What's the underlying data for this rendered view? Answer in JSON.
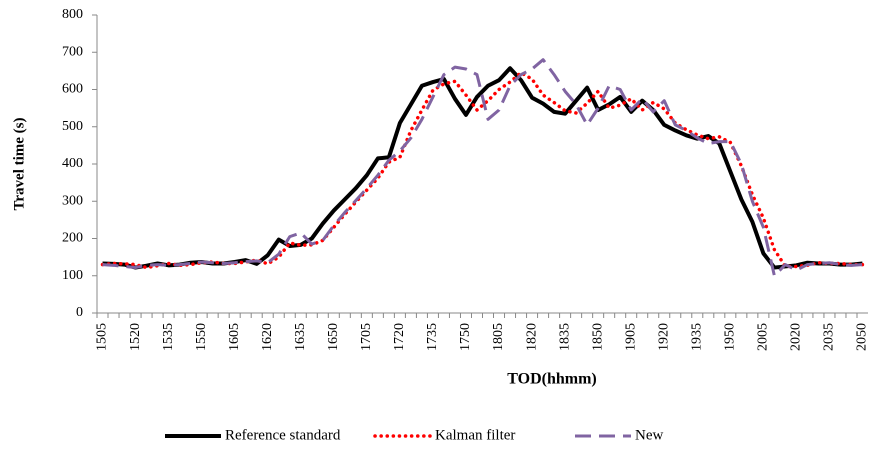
{
  "chart_data": {
    "type": "line",
    "x_label": "TOD(hhmm)",
    "y_label": "Travel time (s)",
    "categories": [
      "1505",
      null,
      null,
      "1520",
      null,
      null,
      "1535",
      null,
      null,
      "1550",
      null,
      null,
      "1605",
      null,
      null,
      "1620",
      null,
      null,
      "1635",
      null,
      null,
      "1650",
      null,
      null,
      "1705",
      null,
      null,
      "1720",
      null,
      null,
      "1735",
      null,
      null,
      "1750",
      null,
      null,
      "1805",
      null,
      null,
      "1820",
      null,
      null,
      "1835",
      null,
      null,
      "1850",
      null,
      null,
      "1905",
      null,
      null,
      "1920",
      null,
      null,
      "1935",
      null,
      null,
      "1950",
      null,
      null,
      "2005",
      null,
      null,
      "2020",
      null,
      null,
      "2035",
      null,
      null,
      "2050"
    ],
    "series": [
      {
        "name": "Reference standard",
        "color": "#000000",
        "style": "solid",
        "values": [
          133,
          132,
          130,
          122,
          127,
          133,
          128,
          130,
          135,
          137,
          133,
          133,
          137,
          142,
          132,
          155,
          197,
          180,
          183,
          200,
          240,
          275,
          305,
          335,
          370,
          415,
          418,
          510,
          560,
          610,
          620,
          628,
          575,
          532,
          580,
          610,
          625,
          657,
          625,
          578,
          562,
          540,
          535,
          570,
          605,
          545,
          560,
          580,
          540,
          570,
          545,
          505,
          490,
          477,
          468,
          475,
          455,
          380,
          305,
          245,
          160,
          122,
          125,
          128,
          135,
          133,
          133,
          130,
          130,
          133
        ]
      },
      {
        "name": "Kalman filter",
        "color": "#ff0000",
        "style": "dotted",
        "values": [
          130,
          133,
          132,
          130,
          122,
          127,
          133,
          128,
          130,
          135,
          137,
          133,
          133,
          137,
          142,
          132,
          150,
          188,
          182,
          183,
          195,
          230,
          265,
          298,
          330,
          362,
          405,
          418,
          490,
          545,
          598,
          615,
          622,
          585,
          545,
          570,
          600,
          620,
          645,
          628,
          585,
          565,
          543,
          537,
          563,
          595,
          550,
          558,
          575,
          545,
          565,
          548,
          510,
          492,
          478,
          468,
          473,
          458,
          395,
          318,
          255,
          170,
          125,
          125,
          128,
          135,
          133,
          133,
          130,
          130
        ]
      },
      {
        "name": "New",
        "color": "#8064a2",
        "style": "dashed",
        "values": [
          130,
          128,
          125,
          122,
          128,
          130,
          128,
          130,
          133,
          137,
          135,
          133,
          135,
          138,
          140,
          135,
          158,
          205,
          215,
          185,
          195,
          235,
          270,
          302,
          335,
          370,
          410,
          435,
          470,
          520,
          580,
          640,
          660,
          655,
          640,
          520,
          545,
          610,
          640,
          655,
          680,
          640,
          595,
          560,
          505,
          550,
          610,
          600,
          545,
          575,
          540,
          570,
          505,
          490,
          470,
          455,
          460,
          460,
          400,
          300,
          230,
          100,
          130,
          115,
          130,
          133,
          135,
          130,
          128,
          130
        ]
      }
    ],
    "ylim": [
      0,
      800
    ],
    "yticks": [
      0,
      100,
      200,
      300,
      400,
      500,
      600,
      700,
      800
    ],
    "grid": false,
    "legend": "bottom"
  }
}
